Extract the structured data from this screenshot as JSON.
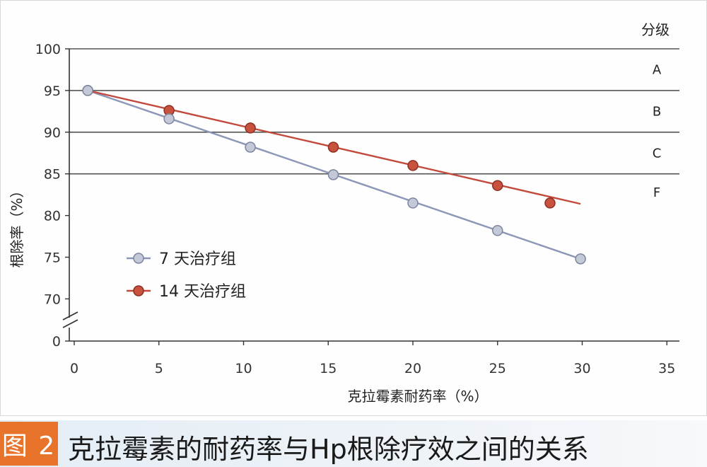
{
  "chart_data": {
    "type": "line",
    "xlabel": "克拉霉素耐药率（%）",
    "ylabel": "根除率（%）",
    "xlim": [
      0,
      35
    ],
    "x_ticks": [
      "0",
      "5",
      "10",
      "15",
      "20",
      "25",
      "30",
      "35"
    ],
    "y_ticks": [
      "0",
      "70",
      "75",
      "80",
      "85",
      "90",
      "95",
      "100"
    ],
    "y_axis_break": true,
    "grade_header": "分级",
    "grades": [
      {
        "label": "A",
        "min": 95,
        "max": 100
      },
      {
        "label": "B",
        "min": 90,
        "max": 95
      },
      {
        "label": "C",
        "min": 85,
        "max": 90
      },
      {
        "label": "F",
        "min": 70,
        "max": 85
      }
    ],
    "grade_lines": [
      100,
      95,
      90,
      85
    ],
    "series": [
      {
        "name": "7 天治疗组",
        "color": "#8c96b6",
        "marker_color": "#c4c9d8",
        "points": [
          [
            0.8,
            95.0
          ],
          [
            5.6,
            91.6
          ],
          [
            10.4,
            88.2
          ],
          [
            15.3,
            84.9
          ],
          [
            20.0,
            81.5
          ],
          [
            25.0,
            78.2
          ],
          [
            29.9,
            74.8
          ]
        ],
        "trend": [
          [
            0.8,
            95.0
          ],
          [
            29.9,
            74.8
          ]
        ]
      },
      {
        "name": "14 天治疗组",
        "color": "#c24a3c",
        "marker_color": "#c8523e",
        "points": [
          [
            0.8,
            95.0
          ],
          [
            5.6,
            92.6
          ],
          [
            10.4,
            90.5
          ],
          [
            15.3,
            88.2
          ],
          [
            20.0,
            86.0
          ],
          [
            25.0,
            83.6
          ],
          [
            28.1,
            81.5
          ]
        ],
        "trend": [
          [
            0.8,
            95.0
          ],
          [
            29.9,
            81.4
          ]
        ]
      }
    ],
    "legend_position": "lower-left"
  },
  "caption": {
    "badge": "图 2",
    "text": "克拉霉素的耐药率与Hp根除疗效之间的关系"
  }
}
